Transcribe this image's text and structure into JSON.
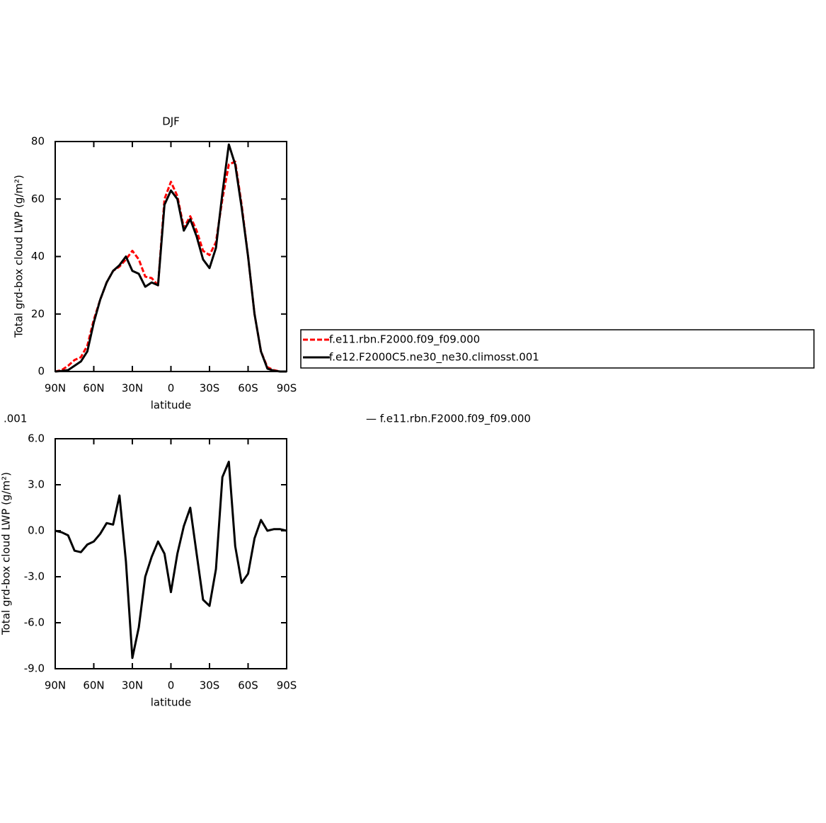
{
  "chart_data": [
    {
      "type": "line",
      "title": "DJF",
      "x_label": "latitude",
      "y_label": "Total grd-box cloud LWP (g/m²)",
      "x": [
        90,
        85,
        80,
        75,
        70,
        65,
        60,
        55,
        50,
        45,
        40,
        35,
        30,
        25,
        20,
        15,
        10,
        5,
        0,
        -5,
        -10,
        -15,
        -20,
        -25,
        -30,
        -35,
        -40,
        -45,
        -50,
        -55,
        -60,
        -65,
        -70,
        -75,
        -80,
        -85,
        -90
      ],
      "xlim": [
        90,
        -90
      ],
      "xticks": [
        {
          "value": 90,
          "label": "90N"
        },
        {
          "value": 60,
          "label": "60N"
        },
        {
          "value": 30,
          "label": "30N"
        },
        0,
        {
          "value": -30,
          "label": "30S"
        },
        {
          "value": -60,
          "label": "60S"
        },
        {
          "value": -90,
          "label": "90S"
        }
      ],
      "ylim": [
        0,
        80
      ],
      "yticks": [
        0,
        20,
        40,
        60,
        80
      ],
      "legend": "right",
      "series": [
        {
          "name": "f.e11.rbn.F2000.f09_f09.000",
          "color": "#ff0000",
          "dashed": true,
          "values": [
            0,
            0.5,
            2,
            4,
            5,
            9,
            18,
            25,
            31,
            35,
            36.5,
            39,
            42,
            39,
            33,
            32.5,
            30,
            60,
            66,
            61,
            50,
            54,
            49,
            42,
            40.5,
            45,
            60,
            72,
            73,
            58,
            40,
            20,
            7,
            1.5,
            0.5,
            0,
            0
          ]
        },
        {
          "name": "f.e12.F2000C5.ne30_ne30.climosst.001",
          "color": "#000000",
          "dashed": false,
          "values": [
            0,
            0.2,
            0.5,
            2,
            3.5,
            7,
            17,
            25,
            31,
            35,
            37,
            40,
            35,
            34,
            29.5,
            31,
            30,
            58,
            63,
            60,
            49,
            53,
            47,
            39,
            36,
            43,
            62,
            79,
            72,
            57,
            40,
            20,
            7,
            1,
            0.3,
            0,
            0
          ]
        }
      ]
    },
    {
      "type": "line",
      "x_label": "latitude",
      "y_label": "Total grd-box cloud LWP (g/m²)",
      "annotations": [
        ".001",
        "— f.e11.rbn.F2000.f09_f09.000"
      ],
      "x": [
        90,
        85,
        80,
        75,
        70,
        65,
        60,
        55,
        50,
        45,
        40,
        35,
        30,
        25,
        20,
        15,
        10,
        5,
        0,
        -5,
        -10,
        -15,
        -20,
        -25,
        -30,
        -35,
        -40,
        -45,
        -50,
        -55,
        -60,
        -65,
        -70,
        -75,
        -80,
        -85,
        -90
      ],
      "xlim": [
        90,
        -90
      ],
      "xticks": [
        {
          "value": 90,
          "label": "90N"
        },
        {
          "value": 60,
          "label": "60N"
        },
        {
          "value": 30,
          "label": "30N"
        },
        0,
        {
          "value": -30,
          "label": "30S"
        },
        {
          "value": -60,
          "label": "60S"
        },
        {
          "value": -90,
          "label": "90S"
        }
      ],
      "ylim": [
        -9,
        6
      ],
      "yticks": [
        {
          "value": 6,
          "label": "6.0"
        },
        {
          "value": 3,
          "label": "3.0"
        },
        {
          "value": 0,
          "label": "0.0"
        },
        {
          "value": -3,
          "label": "-3.0"
        },
        {
          "value": -6,
          "label": "-6.0"
        },
        {
          "value": -9,
          "label": "-9.0"
        }
      ],
      "series": [
        {
          "color": "#000000",
          "dashed": false,
          "values": [
            0,
            -0.1,
            -0.3,
            -1.3,
            -1.4,
            -0.9,
            -0.7,
            -0.2,
            0.5,
            0.4,
            2.3,
            -2,
            -8.3,
            -6.3,
            -3,
            -1.7,
            -0.7,
            -1.5,
            -4,
            -1.5,
            0.3,
            1.5,
            -1.5,
            -4.5,
            -4.9,
            -2.5,
            3.5,
            4.5,
            -1,
            -3.4,
            -2.8,
            -0.5,
            0.7,
            0,
            0.1,
            0.1,
            0
          ]
        }
      ]
    }
  ]
}
